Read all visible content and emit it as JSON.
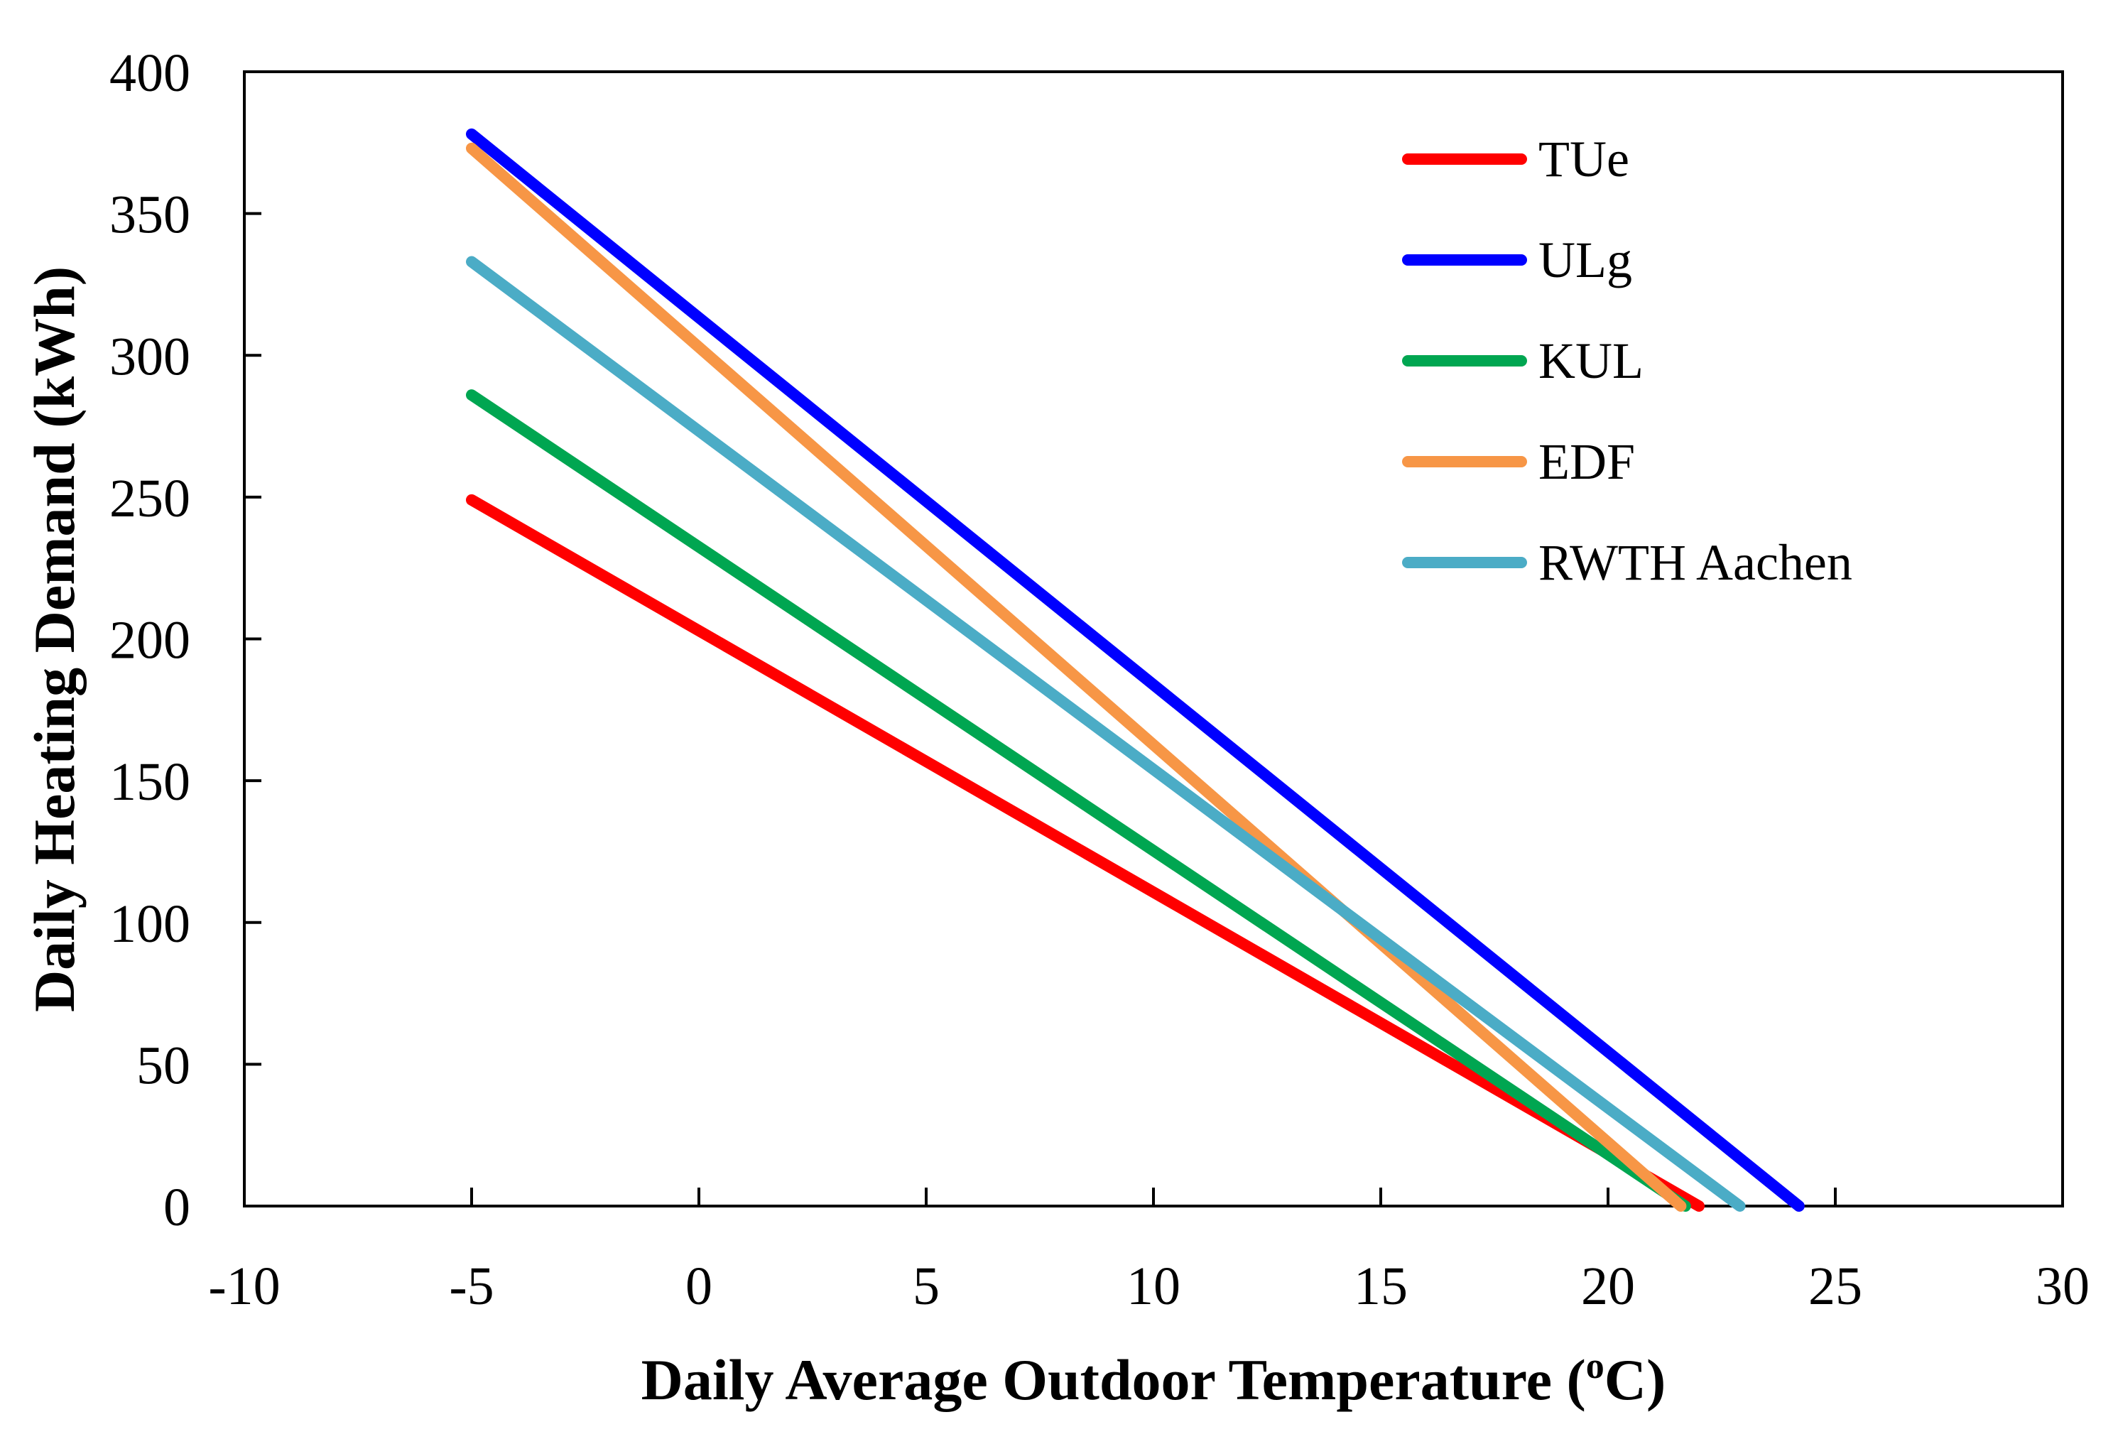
{
  "chart_data": {
    "type": "line",
    "title": "",
    "xlabel": "Daily Average Outdoor Temperature (",
    "xlabel_superscript": "o",
    "xlabel_suffix": "C)",
    "ylabel": "Daily Heating Demand (kWh)",
    "xlim": [
      -10,
      30
    ],
    "ylim": [
      0,
      400
    ],
    "x_ticks": [
      -10,
      -5,
      0,
      5,
      10,
      15,
      20,
      25,
      30
    ],
    "y_ticks": [
      0,
      50,
      100,
      150,
      200,
      250,
      300,
      350,
      400
    ],
    "grid": false,
    "legend_position": "top-right",
    "series": [
      {
        "name": "TUe",
        "color": "#ff0000",
        "x": [
          -5,
          22.0
        ],
        "y": [
          249,
          0
        ]
      },
      {
        "name": "ULg",
        "color": "#0000ff",
        "x": [
          -5,
          24.2
        ],
        "y": [
          378,
          0
        ]
      },
      {
        "name": "KUL",
        "color": "#00a651",
        "x": [
          -5,
          21.7
        ],
        "y": [
          286,
          0
        ]
      },
      {
        "name": "EDF",
        "color": "#f79646",
        "x": [
          -5,
          21.6
        ],
        "y": [
          373,
          0
        ]
      },
      {
        "name": "RWTH Aachen",
        "color": "#4bacc6",
        "x": [
          -5,
          22.9
        ],
        "y": [
          333,
          0
        ]
      }
    ]
  }
}
